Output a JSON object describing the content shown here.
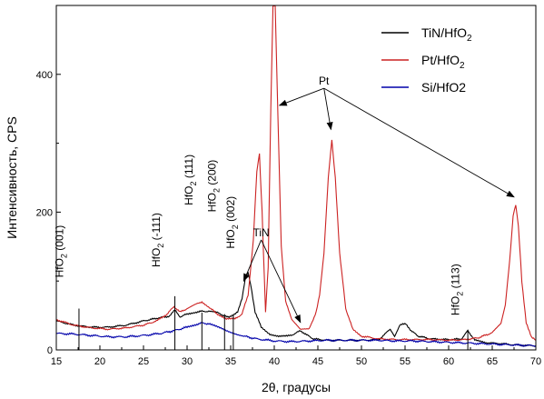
{
  "chart_data": {
    "type": "line",
    "title": "",
    "xlabel": "2θ, градусы",
    "ylabel": "Интенсивность, CPS",
    "xlim": [
      15,
      70
    ],
    "ylim": [
      0,
      500
    ],
    "x_ticks": [
      15,
      20,
      25,
      30,
      35,
      40,
      45,
      50,
      55,
      60,
      65,
      70
    ],
    "y_ticks": [
      0,
      200,
      400
    ],
    "legend_position": "top-right",
    "legend": [
      {
        "base": "TiN/HfO",
        "sub": "2",
        "color": "#000000"
      },
      {
        "base": "Pt/HfO",
        "sub": "2",
        "color": "#cc2222"
      },
      {
        "base": "Si/HfO2",
        "sub": "",
        "color": "#0000aa"
      }
    ],
    "series": [
      {
        "name": "TiN/HfO2",
        "color": "#000000",
        "x": [
          15,
          17,
          19,
          21,
          23,
          25,
          26.5,
          28,
          28.6,
          29.2,
          30,
          31,
          31.7,
          32.5,
          33.5,
          34.2,
          34.8,
          35.3,
          35.8,
          36.3,
          36.7,
          37.0,
          37.3,
          37.8,
          38.5,
          39.5,
          40.5,
          41.5,
          42.3,
          43.0,
          43.7,
          44.5,
          46,
          48,
          50,
          52,
          53.3,
          53.8,
          54.4,
          55.1,
          55.7,
          56.5,
          58,
          60,
          61.5,
          62.2,
          63,
          64,
          66,
          68,
          70
        ],
        "y": [
          42,
          36,
          33,
          33,
          36,
          42,
          46,
          49,
          58,
          48,
          52,
          55,
          56,
          56,
          54,
          50,
          47,
          50,
          55,
          75,
          105,
          112,
          95,
          55,
          33,
          23,
          20,
          20,
          23,
          28,
          22,
          16,
          14,
          14,
          14,
          15,
          30,
          20,
          36,
          38,
          28,
          20,
          16,
          15,
          16,
          28,
          14,
          11,
          9,
          7,
          6
        ]
      },
      {
        "name": "Pt/HfO2",
        "color": "#cc2222",
        "x": [
          15,
          17,
          19,
          21,
          23,
          25,
          26.5,
          27.7,
          28.5,
          29.2,
          30,
          31,
          31.7,
          32.7,
          33.5,
          34.5,
          35.5,
          36.3,
          37.0,
          37.6,
          38.0,
          38.3,
          38.6,
          39.0,
          39.3,
          39.6,
          39.85,
          40.1,
          40.4,
          40.8,
          41.3,
          42,
          43,
          44,
          44.8,
          45.2,
          45.7,
          46.2,
          46.6,
          47.0,
          47.5,
          48.2,
          49,
          50,
          52,
          54,
          56,
          58,
          60,
          62,
          63.5,
          65,
          66,
          66.5,
          67.0,
          67.4,
          67.7,
          68.0,
          68.4,
          68.9,
          69.5,
          70
        ],
        "y": [
          44,
          36,
          32,
          30,
          32,
          36,
          42,
          52,
          63,
          55,
          60,
          66,
          70,
          60,
          52,
          45,
          45,
          52,
          80,
          160,
          260,
          285,
          200,
          55,
          120,
          350,
          500,
          500,
          350,
          150,
          70,
          45,
          30,
          30,
          55,
          80,
          140,
          250,
          305,
          250,
          140,
          60,
          30,
          20,
          16,
          15,
          15,
          15,
          14,
          15,
          18,
          25,
          38,
          65,
          130,
          195,
          210,
          180,
          100,
          40,
          18,
          14
        ]
      },
      {
        "name": "Si/HfO2",
        "color": "#0000aa",
        "x": [
          15,
          17,
          19,
          21,
          23,
          25,
          27,
          28.5,
          30,
          31,
          31.7,
          32.5,
          33.5,
          34.5,
          35.5,
          36.5,
          38,
          40,
          42,
          44,
          46,
          48,
          50,
          52,
          54,
          56,
          58,
          60,
          62,
          64,
          66,
          68,
          70
        ],
        "y": [
          24,
          23,
          21,
          19,
          19,
          21,
          24,
          28,
          33,
          37,
          39,
          38,
          33,
          28,
          24,
          20,
          16,
          13,
          12,
          13,
          14,
          14,
          14,
          14,
          13,
          13,
          12,
          11,
          10,
          9,
          8,
          7,
          6
        ]
      }
    ],
    "annotations": [
      {
        "base": "HfO",
        "sub": "2",
        "tail": " (001)",
        "x": 17.6,
        "line_top": 60,
        "text_x": 15.8,
        "text_y": 105
      },
      {
        "base": "HfO",
        "sub": "2",
        "tail": " (-111)",
        "x": 28.6,
        "line_top": 78,
        "text_x": 26.9,
        "text_y": 120
      },
      {
        "base": "HfO",
        "sub": "2",
        "tail": " (111)",
        "x": 31.7,
        "line_top": 54,
        "text_x": 30.6,
        "text_y": 210
      },
      {
        "base": "HfO",
        "sub": "2",
        "tail": " (200)",
        "x": 34.3,
        "line_top": 52,
        "text_x": 33.3,
        "text_y": 200
      },
      {
        "base": "HfO",
        "sub": "2",
        "tail": " (002)",
        "x": 35.3,
        "line_top": 50,
        "text_x": 35.4,
        "text_y": 147
      },
      {
        "base": "HfO",
        "sub": "2",
        "tail": " (113)",
        "x": 62.2,
        "line_top": 28,
        "text_x": 61.2,
        "text_y": 50
      }
    ],
    "label_arrows": [
      {
        "text": "TiN",
        "text_x": 38.5,
        "text_y": 165,
        "targets": [
          [
            36.5,
            100
          ],
          [
            43.0,
            40
          ]
        ]
      },
      {
        "text": "Pt",
        "text_x": 45.7,
        "text_y": 385,
        "targets": [
          [
            40.6,
            355
          ],
          [
            46.5,
            320
          ],
          [
            67.5,
            222
          ]
        ]
      }
    ]
  }
}
